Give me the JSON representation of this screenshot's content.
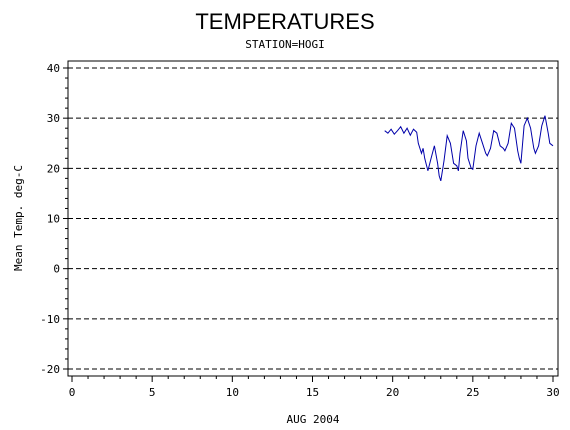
{
  "chart_data": {
    "type": "line",
    "title": "TEMPERATURES",
    "subtitle": "STATION=HOGI",
    "xlabel": "AUG 2004",
    "ylabel": "Mean Temp. deg-C",
    "xlim": [
      0,
      30
    ],
    "ylim": [
      -20,
      40
    ],
    "x_ticks": [
      0,
      5,
      10,
      15,
      20,
      25,
      30
    ],
    "y_ticks": [
      -20,
      -10,
      0,
      10,
      20,
      30,
      40
    ],
    "grid": "horizontal-dashed",
    "line_color": "#0000aa",
    "series": [
      {
        "x": [
          19.5,
          19.7,
          19.9,
          20.1,
          20.3,
          20.5,
          20.7,
          20.9,
          21.1,
          21.3,
          21.5,
          21.6,
          21.8,
          21.9,
          22.0,
          22.2,
          22.4,
          22.6,
          22.8,
          22.9,
          23.0,
          23.2,
          23.4,
          23.6,
          23.8,
          24.0,
          24.1,
          24.2,
          24.4,
          24.6,
          24.7,
          24.9,
          25.0,
          25.2,
          25.4,
          25.6,
          25.8,
          25.9,
          26.1,
          26.3,
          26.5,
          26.7,
          26.9,
          27.0,
          27.2,
          27.4,
          27.6,
          27.8,
          27.9,
          28.0,
          28.2,
          28.4,
          28.6,
          28.8,
          28.9,
          29.1,
          29.3,
          29.5,
          29.7,
          29.8,
          30.0
        ],
        "y": [
          27.5,
          27.0,
          27.8,
          26.8,
          27.5,
          28.3,
          27.0,
          28.0,
          26.6,
          27.8,
          27.2,
          25.0,
          23.0,
          24.0,
          22.0,
          19.5,
          22.0,
          24.5,
          21.0,
          18.5,
          17.5,
          21.5,
          26.5,
          25.0,
          21.0,
          20.5,
          19.5,
          23.0,
          27.5,
          25.5,
          22.0,
          20.0,
          19.8,
          24.5,
          27.0,
          25.0,
          23.0,
          22.5,
          24.0,
          27.5,
          27.0,
          24.5,
          24.0,
          23.5,
          25.0,
          29.0,
          28.0,
          23.5,
          22.0,
          21.0,
          28.5,
          30.0,
          28.0,
          24.0,
          23.0,
          24.5,
          28.5,
          30.5,
          27.0,
          25.0,
          24.5
        ]
      }
    ]
  }
}
